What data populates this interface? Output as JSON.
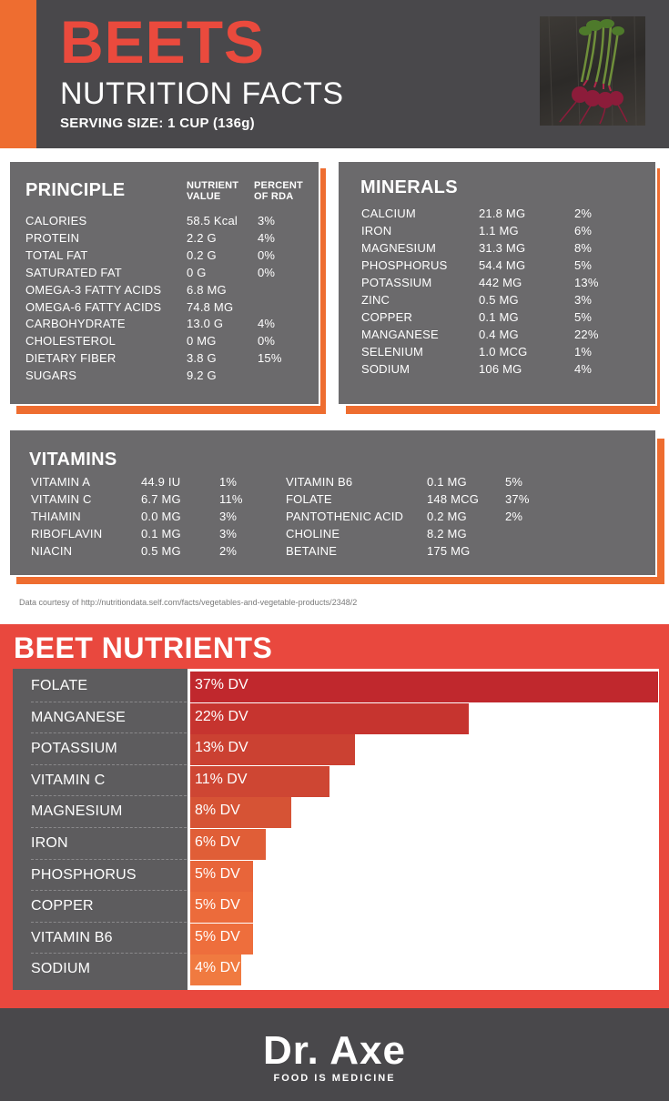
{
  "header": {
    "title": "BEETS",
    "subtitle": "NUTRITION FACTS",
    "serving": "SERVING SIZE: 1 CUP (136g)",
    "accent_color": "#ea4a3d",
    "stripe_color": "#ee6d30"
  },
  "principle": {
    "title": "PRINCIPLE",
    "col_value": "NUTRIENT VALUE",
    "col_rda": "PERCENT OF RDA",
    "rows": [
      {
        "name": "CALORIES",
        "value": "58.5 Kcal",
        "rda": "3%"
      },
      {
        "name": "PROTEIN",
        "value": "2.2 G",
        "rda": "4%"
      },
      {
        "name": "TOTAL FAT",
        "value": "0.2 G",
        "rda": "0%"
      },
      {
        "name": "SATURATED FAT",
        "value": "0 G",
        "rda": "0%"
      },
      {
        "name": "OMEGA-3 FATTY ACIDS",
        "value": "6.8 MG",
        "rda": ""
      },
      {
        "name": "OMEGA-6 FATTY ACIDS",
        "value": "74.8 MG",
        "rda": ""
      },
      {
        "name": "CARBOHYDRATE",
        "value": "13.0 G",
        "rda": "4%"
      },
      {
        "name": "CHOLESTEROL",
        "value": "0 MG",
        "rda": "0%"
      },
      {
        "name": "DIETARY FIBER",
        "value": "3.8 G",
        "rda": "15%"
      },
      {
        "name": "SUGARS",
        "value": "9.2 G",
        "rda": ""
      }
    ]
  },
  "minerals": {
    "title": "MINERALS",
    "rows": [
      {
        "name": "CALCIUM",
        "value": "21.8 MG",
        "rda": "2%"
      },
      {
        "name": "IRON",
        "value": "1.1 MG",
        "rda": "6%"
      },
      {
        "name": "MAGNESIUM",
        "value": "31.3 MG",
        "rda": "8%"
      },
      {
        "name": "PHOSPHORUS",
        "value": "54.4 MG",
        "rda": "5%"
      },
      {
        "name": "POTASSIUM",
        "value": "442 MG",
        "rda": "13%"
      },
      {
        "name": "ZINC",
        "value": "0.5 MG",
        "rda": "3%"
      },
      {
        "name": "COPPER",
        "value": "0.1 MG",
        "rda": "5%"
      },
      {
        "name": "MANGANESE",
        "value": "0.4 MG",
        "rda": "22%"
      },
      {
        "name": "SELENIUM",
        "value": "1.0 MCG",
        "rda": "1%"
      },
      {
        "name": "SODIUM",
        "value": "106 MG",
        "rda": "4%"
      }
    ]
  },
  "vitamins": {
    "title": "VITAMINS",
    "left": [
      {
        "name": "VITAMIN A",
        "value": "44.9 IU",
        "rda": "1%"
      },
      {
        "name": "VITAMIN C",
        "value": "6.7 MG",
        "rda": "11%"
      },
      {
        "name": "THIAMIN",
        "value": "0.0 MG",
        "rda": "3%"
      },
      {
        "name": "RIBOFLAVIN",
        "value": "0.1 MG",
        "rda": "3%"
      },
      {
        "name": "NIACIN",
        "value": "0.5 MG",
        "rda": "2%"
      }
    ],
    "right": [
      {
        "name": "VITAMIN B6",
        "value": "0.1 MG",
        "rda": "5%"
      },
      {
        "name": "FOLATE",
        "value": "148 MCG",
        "rda": "37%"
      },
      {
        "name": "PANTOTHENIC ACID",
        "value": "0.2 MG",
        "rda": "2%"
      },
      {
        "name": "CHOLINE",
        "value": "8.2 MG",
        "rda": ""
      },
      {
        "name": "BETAINE",
        "value": "175 MG",
        "rda": ""
      }
    ]
  },
  "credit": "Data courtesy of http://nutritiondata.self.com/facts/vegetables-and-vegetable-products/2348/2",
  "chart_data": {
    "type": "bar",
    "orientation": "horizontal",
    "title": "BEET NUTRIENTS",
    "categories": [
      "FOLATE",
      "MANGANESE",
      "POTASSIUM",
      "VITAMIN C",
      "MAGNESIUM",
      "IRON",
      "PHOSPHORUS",
      "COPPER",
      "VITAMIN B6",
      "SODIUM"
    ],
    "values": [
      37,
      22,
      13,
      11,
      8,
      6,
      5,
      5,
      5,
      4
    ],
    "labels": [
      "37% DV",
      "22% DV",
      "13% DV",
      "11% DV",
      "8% DV",
      "6% DV",
      "5% DV",
      "5% DV",
      "5% DV",
      "4% DV"
    ],
    "colors": [
      "#c0282d",
      "#c6342f",
      "#cb4132",
      "#ce4633",
      "#d65335",
      "#e05e37",
      "#e8653a",
      "#ec6b3b",
      "#ee6e3c",
      "#f07a40"
    ],
    "xlim": [
      0,
      37
    ],
    "grid": false
  },
  "footer": {
    "brand": "Dr. Axe",
    "tagline": "FOOD IS MEDICINE"
  }
}
